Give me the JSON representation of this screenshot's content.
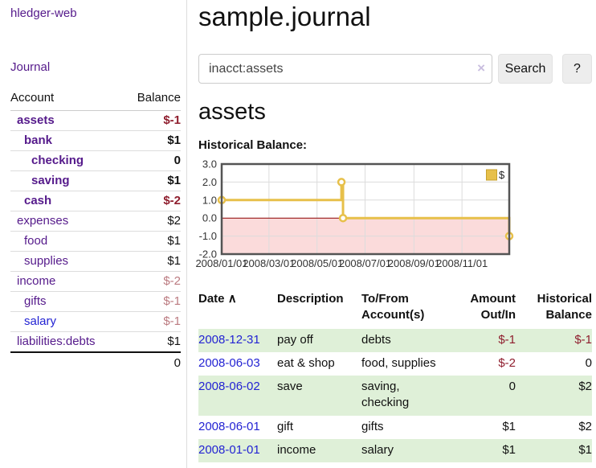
{
  "app": {
    "title": "hledger-web"
  },
  "sidebar": {
    "journal_label": "Journal",
    "accounts_table": {
      "headers": {
        "account": "Account",
        "balance": "Balance"
      },
      "rows": [
        {
          "name": "assets",
          "indent": 0,
          "bold": true,
          "balance": "$-1",
          "balance_style": "neg-strong"
        },
        {
          "name": "bank",
          "indent": 1,
          "bold": true,
          "balance": "$1",
          "balance_style": "pos"
        },
        {
          "name": "checking",
          "indent": 2,
          "bold": true,
          "balance": "0",
          "balance_style": "pos"
        },
        {
          "name": "saving",
          "indent": 2,
          "bold": true,
          "balance": "$1",
          "balance_style": "pos"
        },
        {
          "name": "cash",
          "indent": 1,
          "bold": true,
          "balance": "$-2",
          "balance_style": "neg-strong"
        },
        {
          "name": "expenses",
          "indent": 0,
          "bold": false,
          "balance": "$2",
          "balance_style": "pos"
        },
        {
          "name": "food",
          "indent": 1,
          "bold": false,
          "balance": "$1",
          "balance_style": "pos"
        },
        {
          "name": "supplies",
          "indent": 1,
          "bold": false,
          "balance": "$1",
          "balance_style": "pos"
        },
        {
          "name": "income",
          "indent": 0,
          "bold": false,
          "balance": "$-2",
          "balance_style": "neg-muted"
        },
        {
          "name": "gifts",
          "indent": 1,
          "bold": false,
          "balance": "$-1",
          "balance_style": "neg-muted"
        },
        {
          "name": "salary",
          "indent": 1,
          "bold": false,
          "balance": "$-1",
          "balance_style": "neg-muted",
          "link_color": "blue"
        },
        {
          "name": "liabilities:debts",
          "indent": 0,
          "bold": false,
          "balance": "$1",
          "balance_style": "pos"
        }
      ],
      "total": "0"
    }
  },
  "header": {
    "title": "sample.journal"
  },
  "search": {
    "value": "inacct:assets",
    "clear_icon": "×",
    "button_label": "Search",
    "help_label": "?"
  },
  "account_page": {
    "title": "assets",
    "chart_label": "Historical Balance:"
  },
  "chart_data": {
    "type": "line",
    "title": "Historical Balance",
    "step": true,
    "legend": [
      {
        "label": "$",
        "color": "#e7c04a"
      }
    ],
    "legend_position": "top-right",
    "x_tick_labels": [
      "2008/01/01",
      "2008/03/01",
      "2008/05/01",
      "2008/07/01",
      "2008/09/01",
      "2008/11/01"
    ],
    "x_range": [
      "2008-01-01",
      "2008-12-31"
    ],
    "y_ticks": [
      "3.0",
      "2.0",
      "1.0",
      "0.0",
      "-1.0",
      "-2.0"
    ],
    "ylim": [
      -2,
      3
    ],
    "grid": true,
    "points": [
      {
        "date": "2008-01-01",
        "value": 1
      },
      {
        "date": "2008-06-01",
        "value": 2
      },
      {
        "date": "2008-06-03",
        "value": 0
      },
      {
        "date": "2008-12-31",
        "value": -1
      }
    ],
    "line_color": "#e7c04a",
    "marker_fill": "#ffffff",
    "negative_region_color": "#fbdbdb",
    "zero_line_color": "#8b0000",
    "grid_color": "#dcdcdc",
    "border_color": "#545454"
  },
  "register_table": {
    "date_header": "Date",
    "sort_icon": "∧",
    "columns": [
      "Description",
      "To/From Account(s)",
      "Amount Out/In",
      "Historical Balance"
    ],
    "rows": [
      {
        "date": "2008-12-31",
        "description": "pay off",
        "accounts": [
          "debts"
        ],
        "amount": "$-1",
        "amount_style": "neg-strong",
        "balance": "$-1",
        "balance_style": "neg-strong"
      },
      {
        "date": "2008-06-03",
        "description": "eat & shop",
        "accounts": [
          "food",
          "supplies"
        ],
        "amount": "$-2",
        "amount_style": "neg-strong",
        "balance": "0",
        "balance_style": "pos"
      },
      {
        "date": "2008-06-02",
        "description": "save",
        "accounts": [
          "saving",
          "checking"
        ],
        "amount": "0",
        "amount_style": "pos",
        "balance": "$2",
        "balance_style": "pos"
      },
      {
        "date": "2008-06-01",
        "description": "gift",
        "accounts": [
          "gifts"
        ],
        "amount": "$1",
        "amount_style": "pos",
        "balance": "$2",
        "balance_style": "pos"
      },
      {
        "date": "2008-01-01",
        "description": "income",
        "accounts": [
          "salary"
        ],
        "amount": "$1",
        "amount_style": "pos",
        "balance": "$1",
        "balance_style": "pos"
      }
    ]
  }
}
